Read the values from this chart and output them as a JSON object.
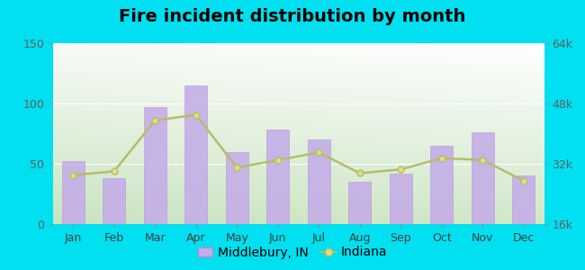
{
  "title": "Fire incident distribution by month",
  "months": [
    "Jan",
    "Feb",
    "Mar",
    "Apr",
    "May",
    "Jun",
    "Jul",
    "Aug",
    "Sep",
    "Oct",
    "Nov",
    "Dec"
  ],
  "bar_values": [
    52,
    38,
    97,
    115,
    60,
    78,
    70,
    35,
    42,
    65,
    76,
    40
  ],
  "line_values": [
    29000,
    30000,
    43500,
    45000,
    31000,
    33000,
    35000,
    29500,
    30500,
    33500,
    33000,
    27500
  ],
  "bar_color": "#c5aee8",
  "bar_edge_color": "#b090d8",
  "line_color": "#b8bc6a",
  "line_marker": "o",
  "line_marker_face": "#dde080",
  "left_ylim": [
    0,
    150
  ],
  "left_yticks": [
    0,
    50,
    100,
    150
  ],
  "right_ylim": [
    16000,
    64000
  ],
  "right_yticks": [
    16000,
    32000,
    48000,
    64000
  ],
  "right_yticklabels": [
    "16k",
    "32k",
    "48k",
    "64k"
  ],
  "outer_bg": "#00e0f0",
  "plot_bg_color": "#e8f5e2",
  "legend_label_bar": "Middlebury, IN",
  "legend_label_line": "Indiana",
  "title_fontsize": 14,
  "tick_fontsize": 9,
  "legend_fontsize": 10,
  "grid_color": "#d8eed0"
}
